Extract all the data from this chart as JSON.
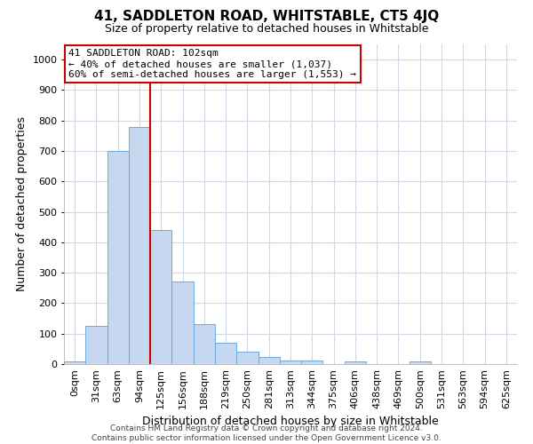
{
  "title": "41, SADDLETON ROAD, WHITSTABLE, CT5 4JQ",
  "subtitle": "Size of property relative to detached houses in Whitstable",
  "xlabel": "Distribution of detached houses by size in Whitstable",
  "ylabel": "Number of detached properties",
  "categories": [
    "0sqm",
    "31sqm",
    "63sqm",
    "94sqm",
    "125sqm",
    "156sqm",
    "188sqm",
    "219sqm",
    "250sqm",
    "281sqm",
    "313sqm",
    "344sqm",
    "375sqm",
    "406sqm",
    "438sqm",
    "469sqm",
    "500sqm",
    "531sqm",
    "563sqm",
    "594sqm",
    "625sqm"
  ],
  "bar_values": [
    8,
    125,
    700,
    780,
    440,
    270,
    132,
    70,
    40,
    24,
    12,
    12,
    0,
    10,
    0,
    0,
    8,
    0,
    0,
    0,
    0
  ],
  "bar_color": "#c5d8f0",
  "bar_edge_color": "#6aaae0",
  "vline_x": 3.5,
  "vline_color": "#cc0000",
  "annotation_title": "41 SADDLETON ROAD: 102sqm",
  "annotation_line1": "← 40% of detached houses are smaller (1,037)",
  "annotation_line2": "60% of semi-detached houses are larger (1,553) →",
  "annotation_box_color": "#cc0000",
  "ylim": [
    0,
    1050
  ],
  "yticks": [
    0,
    100,
    200,
    300,
    400,
    500,
    600,
    700,
    800,
    900,
    1000
  ],
  "footer_line1": "Contains HM Land Registry data © Crown copyright and database right 2024.",
  "footer_line2": "Contains public sector information licensed under the Open Government Licence v3.0.",
  "background_color": "#ffffff",
  "grid_color": "#d0d8e8",
  "title_fontsize": 11,
  "subtitle_fontsize": 9,
  "annotation_fontsize": 8,
  "ylabel_fontsize": 9,
  "xlabel_fontsize": 9,
  "tick_fontsize": 8,
  "footer_fontsize": 6.5
}
